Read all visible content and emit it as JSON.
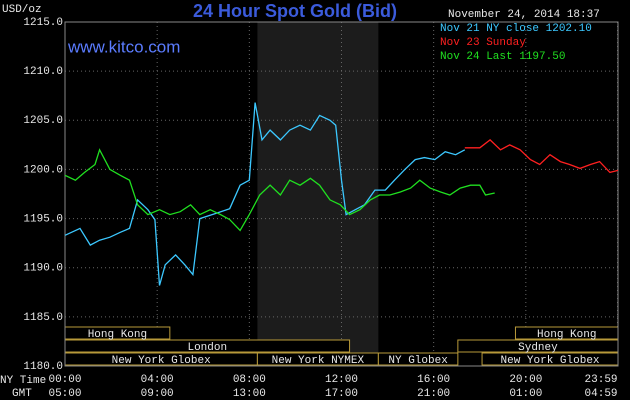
{
  "chart_data": {
    "type": "line",
    "title": "24 Hour Spot Gold (Bid)",
    "source": "www.kitco.com",
    "timestamp": "November 24, 2014 18:37",
    "y_label": "USD/oz",
    "x_label": "NY Time",
    "x2_label": "GMT",
    "xlim": [
      0,
      24
    ],
    "ylim": [
      1180,
      1215
    ],
    "grid": true,
    "background": "#000000",
    "xticks": [
      {
        "value": 0,
        "label": "00:00"
      },
      {
        "value": 4,
        "label": "04:00"
      },
      {
        "value": 8,
        "label": "08:00"
      },
      {
        "value": 12,
        "label": "12:00"
      },
      {
        "value": 16,
        "label": "16:00"
      },
      {
        "value": 20,
        "label": "20:00"
      },
      {
        "value": 23.98,
        "label": "23:59"
      }
    ],
    "x2tick_labels": [
      "05:00",
      "09:00",
      "13:00",
      "17:00",
      "21:00",
      "01:00",
      "04:59"
    ],
    "yticks": [
      {
        "value": 1180,
        "label": "1180.0"
      },
      {
        "value": 1185,
        "label": "1185.0"
      },
      {
        "value": 1190,
        "label": "1190.0"
      },
      {
        "value": 1195,
        "label": "1195.0"
      },
      {
        "value": 1200,
        "label": "1200.0"
      },
      {
        "value": 1205,
        "label": "1205.0"
      },
      {
        "value": 1210,
        "label": "1210.0"
      },
      {
        "value": 1215,
        "label": "1215.0"
      }
    ],
    "highlight": {
      "start": 8.35,
      "end": 13.6
    },
    "sessions": [
      [
        {
          "label": "Hong Kong",
          "start": 0,
          "end": 4.55
        },
        {
          "label": "Hong Kong",
          "start": 19.55,
          "end": 24
        }
      ],
      [
        {
          "label": "London",
          "start": 0,
          "end": 12.35
        },
        {
          "label": "Sydney",
          "start": 17.05,
          "end": 24
        }
      ],
      [
        {
          "label": "New York Globex",
          "start": 0,
          "end": 8.35
        },
        {
          "label": "New York NYMEX",
          "start": 8.35,
          "end": 13.6
        },
        {
          "label": "NY Globex",
          "start": 13.6,
          "end": 17.05
        },
        {
          "label": "New York Globex",
          "start": 18.1,
          "end": 24
        }
      ]
    ],
    "series": [
      {
        "name": "Nov 21 NY close 1202.10",
        "color": "#3cc8ff",
        "x": [
          0,
          0.65,
          1.1,
          1.5,
          1.95,
          2.4,
          2.8,
          3.15,
          3.6,
          3.9,
          4.1,
          4.35,
          4.8,
          5.2,
          5.55,
          5.85,
          6.5,
          7.15,
          7.6,
          8.0,
          8.25,
          8.55,
          8.9,
          9.35,
          9.75,
          10.2,
          10.65,
          11.05,
          11.5,
          11.75,
          12.0,
          12.2,
          12.6,
          13.0,
          13.45,
          13.9,
          14.3,
          14.75,
          15.2,
          15.6,
          16.05,
          16.5,
          16.95,
          17.35
        ],
        "values": [
          1193.3,
          1194.0,
          1192.3,
          1192.8,
          1193.1,
          1193.6,
          1194.0,
          1196.9,
          1195.9,
          1194.9,
          1188.2,
          1190.3,
          1191.3,
          1190.3,
          1189.3,
          1195.0,
          1195.5,
          1196.0,
          1198.4,
          1198.9,
          1206.8,
          1203.0,
          1204.0,
          1203.0,
          1204.0,
          1204.5,
          1204.0,
          1205.5,
          1205.0,
          1204.5,
          1198.9,
          1195.4,
          1195.9,
          1196.4,
          1197.9,
          1197.9,
          1198.9,
          1200.0,
          1201.0,
          1201.2,
          1201.0,
          1201.8,
          1201.5,
          1202.0
        ]
      },
      {
        "name": "Nov 23 Sunday",
        "color": "#ff2020",
        "x": [
          17.35,
          18.0,
          18.45,
          18.9,
          19.3,
          19.75,
          20.2,
          20.6,
          21.05,
          21.5,
          21.9,
          22.35,
          22.8,
          23.2,
          23.65,
          24.0
        ],
        "values": [
          1202.2,
          1202.2,
          1203.0,
          1202.0,
          1202.5,
          1202.0,
          1201.0,
          1200.5,
          1201.5,
          1200.8,
          1200.5,
          1200.1,
          1200.5,
          1200.8,
          1199.7,
          1199.9
        ]
      },
      {
        "name": "Nov 24 Last 1197.50",
        "color": "#20e020",
        "x": [
          0,
          0.45,
          0.85,
          1.3,
          1.5,
          1.95,
          2.4,
          2.8,
          3.15,
          3.6,
          4.1,
          4.55,
          5.0,
          5.45,
          5.85,
          6.3,
          6.75,
          7.15,
          7.6,
          8.0,
          8.45,
          8.9,
          9.35,
          9.75,
          10.2,
          10.65,
          11.05,
          11.5,
          11.95,
          12.35,
          12.8,
          13.25,
          13.65,
          14.1,
          14.55,
          15.0,
          15.4,
          15.85,
          16.3,
          16.7,
          17.15,
          17.6,
          18.0,
          18.25,
          18.65
        ],
        "values": [
          1199.4,
          1198.9,
          1199.7,
          1200.5,
          1202.0,
          1200.0,
          1199.4,
          1198.9,
          1196.4,
          1195.4,
          1195.9,
          1195.4,
          1195.7,
          1196.4,
          1195.4,
          1195.9,
          1195.4,
          1194.9,
          1193.8,
          1195.4,
          1197.4,
          1198.4,
          1197.4,
          1198.9,
          1198.4,
          1199.1,
          1198.4,
          1196.9,
          1196.4,
          1195.4,
          1195.9,
          1196.9,
          1197.4,
          1197.4,
          1197.7,
          1198.1,
          1198.9,
          1198.1,
          1197.7,
          1197.4,
          1198.1,
          1198.4,
          1198.4,
          1197.4,
          1197.6
        ]
      }
    ]
  }
}
